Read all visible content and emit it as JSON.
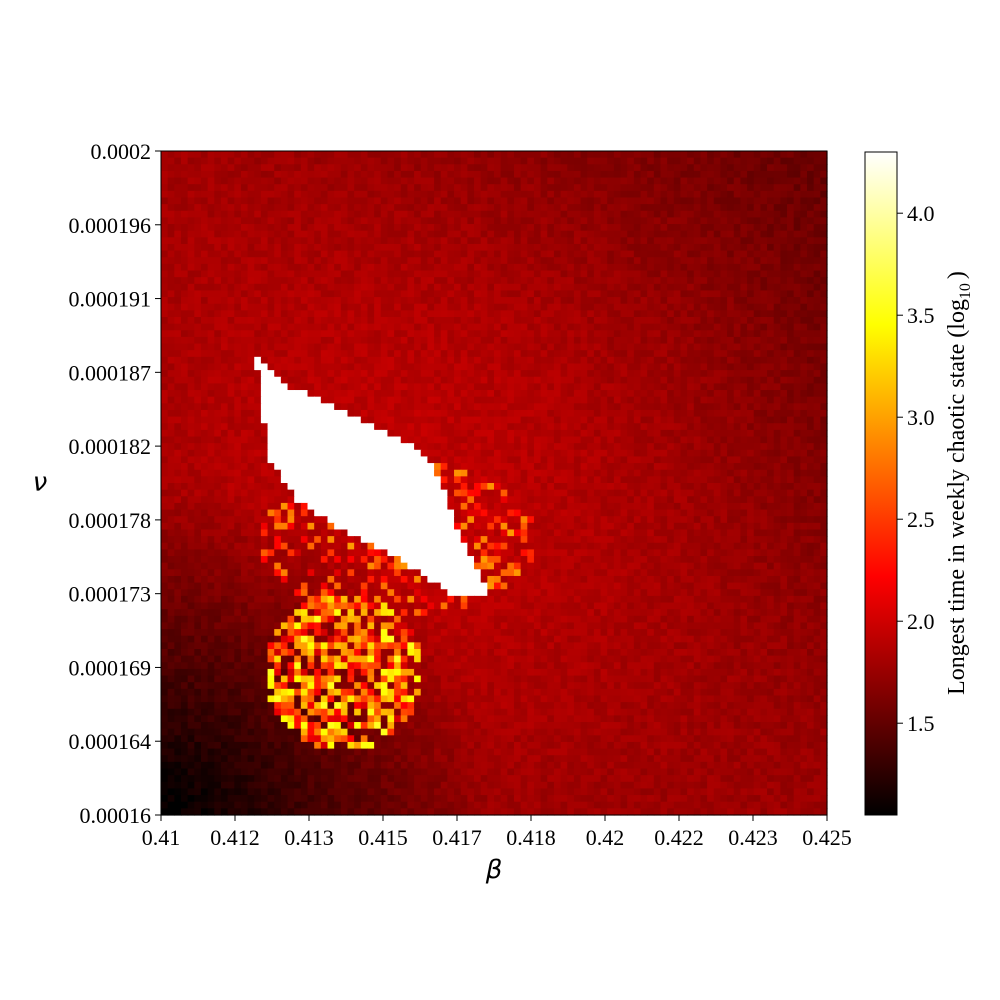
{
  "chart_data": {
    "type": "heatmap",
    "title": "",
    "xlabel": "β",
    "ylabel": "ν",
    "xlim": [
      0.41,
      0.425
    ],
    "ylim": [
      0.00016,
      0.0002
    ],
    "x_tick_labels": [
      "0.41",
      "0.412",
      "0.413",
      "0.415",
      "0.417",
      "0.418",
      "0.42",
      "0.422",
      "0.423",
      "0.425"
    ],
    "y_tick_labels": [
      "0.0002",
      "0.000196",
      "0.000191",
      "0.000187",
      "0.000182",
      "0.000178",
      "0.000173",
      "0.000169",
      "0.000164",
      "0.00016"
    ],
    "grid": false,
    "colormap": "hot",
    "colorbar": {
      "label": "Longest time in weekly chaotic state (log",
      "label_subscript": "10",
      "label_close": ")",
      "range": [
        1.05,
        4.3
      ],
      "tick_values": [
        1.5,
        2.0,
        2.5,
        3.0,
        3.5,
        4.0
      ],
      "tick_labels": [
        "1.5",
        "2.0",
        "2.5",
        "3.0",
        "3.5",
        "4.0"
      ]
    },
    "grid_size": [
      100,
      100
    ],
    "summary_features": [
      {
        "feature": "saturated white region (> 4.3)",
        "beta_range": [
          0.4124,
          0.4178
        ],
        "nu_range": [
          0.000173,
          0.000188
        ]
      },
      {
        "feature": "scattered high values (2.5–3.8)",
        "beta_range": [
          0.4115,
          0.4147
        ],
        "nu_range": [
          0.000165,
          0.000176
        ]
      },
      {
        "feature": "low background (~1.1–1.4)",
        "beta_range": [
          0.41,
          0.413
        ],
        "nu_range": [
          0.00016,
          0.000167
        ]
      },
      {
        "feature": "background (~1.7–2.0)",
        "beta_range": [
          0.416,
          0.425
        ],
        "nu_range": [
          0.00016,
          0.0002
        ]
      }
    ]
  }
}
